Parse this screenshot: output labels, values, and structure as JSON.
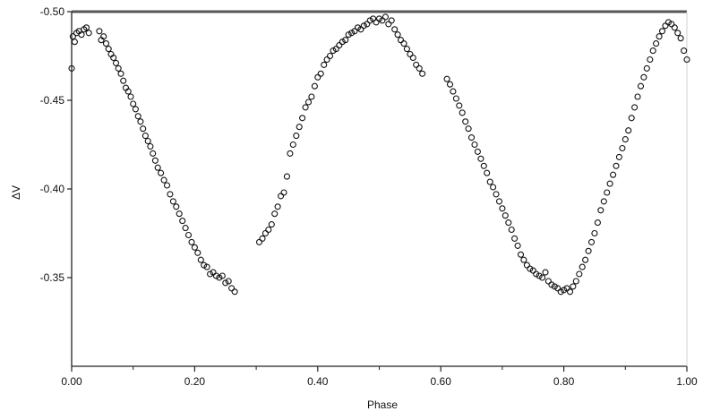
{
  "chart_data": {
    "type": "scatter",
    "title": "",
    "xlabel": "Phase",
    "ylabel": "ΔV",
    "xlim": [
      0.0,
      1.0
    ],
    "ylim": [
      -0.5,
      -0.3
    ],
    "y_inverted": true,
    "grid": false,
    "x_ticks": [
      0.0,
      0.2,
      0.4,
      0.6,
      0.8,
      1.0
    ],
    "x_tick_labels": [
      "0.00",
      "0.20",
      "0.40",
      "0.60",
      "0.80",
      "1.00"
    ],
    "y_ticks": [
      -0.5,
      -0.45,
      -0.4,
      -0.35
    ],
    "y_tick_labels": [
      "-0.50",
      "-0.45",
      "-0.40",
      "-0.35"
    ],
    "marker": "open-circle",
    "colors": {
      "marker_stroke": "#111111",
      "axis": "#222222",
      "top_border": "#555555"
    },
    "series": [
      {
        "x": [
          0.0,
          0.002,
          0.005,
          0.008,
          0.012,
          0.016,
          0.02,
          0.024,
          0.028,
          0.045,
          0.048,
          0.052,
          0.056,
          0.06,
          0.064,
          0.068,
          0.072,
          0.076,
          0.08,
          0.084,
          0.088,
          0.092,
          0.096,
          0.1,
          0.104,
          0.108,
          0.112,
          0.116,
          0.12,
          0.124,
          0.128,
          0.132,
          0.136,
          0.14,
          0.145,
          0.15,
          0.155,
          0.16,
          0.165,
          0.17,
          0.175,
          0.18,
          0.185,
          0.19,
          0.195,
          0.2,
          0.205,
          0.21,
          0.215,
          0.22,
          0.225,
          0.23,
          0.235,
          0.24,
          0.245,
          0.25,
          0.255,
          0.26,
          0.265,
          0.305,
          0.31,
          0.315,
          0.32,
          0.325,
          0.33,
          0.335,
          0.34,
          0.345,
          0.35,
          0.355,
          0.36,
          0.365,
          0.37,
          0.375,
          0.38,
          0.385,
          0.39,
          0.395,
          0.4,
          0.405,
          0.41,
          0.415,
          0.42,
          0.425,
          0.43,
          0.435,
          0.44,
          0.445,
          0.45,
          0.455,
          0.46,
          0.465,
          0.47,
          0.475,
          0.48,
          0.485,
          0.49,
          0.495,
          0.5,
          0.505,
          0.51,
          0.515,
          0.52,
          0.525,
          0.53,
          0.535,
          0.54,
          0.545,
          0.55,
          0.555,
          0.56,
          0.565,
          0.57,
          0.61,
          0.615,
          0.62,
          0.625,
          0.63,
          0.635,
          0.64,
          0.645,
          0.65,
          0.655,
          0.66,
          0.665,
          0.67,
          0.675,
          0.68,
          0.685,
          0.69,
          0.695,
          0.7,
          0.705,
          0.71,
          0.715,
          0.72,
          0.725,
          0.73,
          0.735,
          0.74,
          0.745,
          0.75,
          0.755,
          0.76,
          0.765,
          0.77,
          0.775,
          0.78,
          0.785,
          0.79,
          0.795,
          0.8,
          0.805,
          0.81,
          0.815,
          0.82,
          0.825,
          0.83,
          0.835,
          0.84,
          0.845,
          0.85,
          0.855,
          0.86,
          0.865,
          0.87,
          0.875,
          0.88,
          0.885,
          0.89,
          0.895,
          0.9,
          0.905,
          0.91,
          0.915,
          0.92,
          0.925,
          0.93,
          0.935,
          0.94,
          0.945,
          0.95,
          0.955,
          0.96,
          0.965,
          0.97,
          0.975,
          0.98,
          0.985,
          0.99,
          0.995,
          1.0
        ],
        "y": [
          -0.468,
          -0.486,
          -0.483,
          -0.488,
          -0.489,
          -0.487,
          -0.49,
          -0.491,
          -0.488,
          -0.489,
          -0.484,
          -0.486,
          -0.482,
          -0.479,
          -0.476,
          -0.474,
          -0.471,
          -0.468,
          -0.465,
          -0.461,
          -0.457,
          -0.455,
          -0.452,
          -0.448,
          -0.445,
          -0.441,
          -0.438,
          -0.434,
          -0.43,
          -0.427,
          -0.424,
          -0.42,
          -0.416,
          -0.412,
          -0.409,
          -0.405,
          -0.402,
          -0.397,
          -0.393,
          -0.39,
          -0.386,
          -0.382,
          -0.378,
          -0.374,
          -0.37,
          -0.367,
          -0.364,
          -0.36,
          -0.357,
          -0.356,
          -0.352,
          -0.353,
          -0.351,
          -0.35,
          -0.351,
          -0.347,
          -0.348,
          -0.344,
          -0.342,
          -0.37,
          -0.372,
          -0.375,
          -0.377,
          -0.38,
          -0.386,
          -0.39,
          -0.396,
          -0.398,
          -0.407,
          -0.42,
          -0.425,
          -0.43,
          -0.435,
          -0.44,
          -0.446,
          -0.449,
          -0.452,
          -0.458,
          -0.463,
          -0.465,
          -0.47,
          -0.473,
          -0.475,
          -0.478,
          -0.479,
          -0.481,
          -0.483,
          -0.484,
          -0.487,
          -0.488,
          -0.489,
          -0.491,
          -0.49,
          -0.492,
          -0.493,
          -0.495,
          -0.496,
          -0.494,
          -0.496,
          -0.495,
          -0.497,
          -0.493,
          -0.495,
          -0.49,
          -0.487,
          -0.484,
          -0.482,
          -0.479,
          -0.476,
          -0.474,
          -0.47,
          -0.468,
          -0.465,
          -0.462,
          -0.459,
          -0.455,
          -0.451,
          -0.447,
          -0.443,
          -0.438,
          -0.434,
          -0.429,
          -0.425,
          -0.421,
          -0.417,
          -0.413,
          -0.409,
          -0.404,
          -0.401,
          -0.397,
          -0.393,
          -0.389,
          -0.385,
          -0.381,
          -0.377,
          -0.372,
          -0.368,
          -0.363,
          -0.36,
          -0.357,
          -0.355,
          -0.354,
          -0.352,
          -0.351,
          -0.35,
          -0.353,
          -0.348,
          -0.346,
          -0.345,
          -0.344,
          -0.342,
          -0.343,
          -0.344,
          -0.342,
          -0.345,
          -0.348,
          -0.352,
          -0.356,
          -0.36,
          -0.365,
          -0.37,
          -0.375,
          -0.381,
          -0.388,
          -0.393,
          -0.398,
          -0.403,
          -0.408,
          -0.413,
          -0.418,
          -0.423,
          -0.428,
          -0.433,
          -0.44,
          -0.446,
          -0.452,
          -0.458,
          -0.463,
          -0.468,
          -0.473,
          -0.478,
          -0.482,
          -0.486,
          -0.489,
          -0.492,
          -0.494,
          -0.493,
          -0.491,
          -0.488,
          -0.485,
          -0.478,
          -0.473
        ]
      }
    ]
  }
}
